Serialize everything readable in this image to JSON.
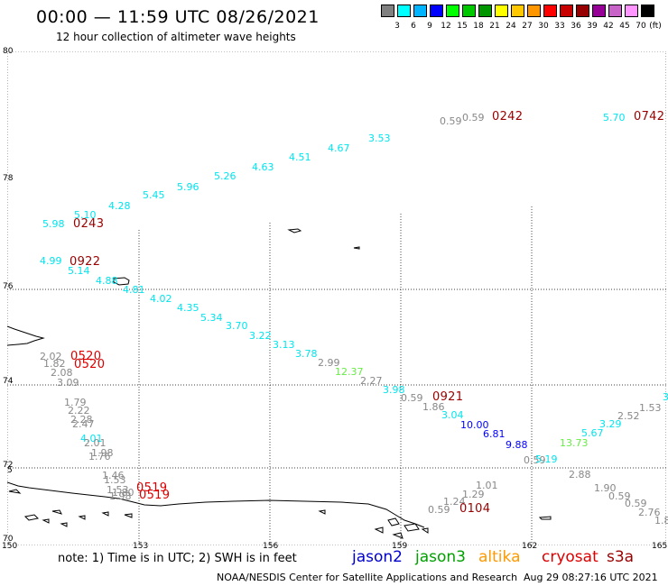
{
  "title": "00:00 — 11:59 UTC 08/26/2021",
  "subtitle": "12 hour collection of altimeter wave heights",
  "scale": {
    "unit": "(ft)",
    "swatches": [
      {
        "label": "",
        "color": "#808080"
      },
      {
        "label": "3",
        "color": "#00ffff"
      },
      {
        "label": "6",
        "color": "#00b4ff"
      },
      {
        "label": "9",
        "color": "#0000ff"
      },
      {
        "label": "12",
        "color": "#00ff00"
      },
      {
        "label": "15",
        "color": "#00c800"
      },
      {
        "label": "18",
        "color": "#009600"
      },
      {
        "label": "21",
        "color": "#ffff00"
      },
      {
        "label": "24",
        "color": "#ffc800"
      },
      {
        "label": "27",
        "color": "#ff9600"
      },
      {
        "label": "30",
        "color": "#ff0000"
      },
      {
        "label": "33",
        "color": "#c80000"
      },
      {
        "label": "36",
        "color": "#960000"
      },
      {
        "label": "39",
        "color": "#960096"
      },
      {
        "label": "42",
        "color": "#c864c8"
      },
      {
        "label": "45",
        "color": "#ff96ff"
      },
      {
        "label": "70",
        "color": "#000000"
      }
    ]
  },
  "axes": {
    "lat_labels": [
      "80",
      "78",
      "76",
      "74",
      "72",
      "70",
      "5"
    ],
    "lon_labels": [
      "150",
      "153",
      "156",
      "159",
      "162",
      "165"
    ]
  },
  "colors": {
    "jason2": "#0000cc",
    "jason3": "#00a000",
    "altika": "#ff9900",
    "cryosat": "#dd0000",
    "s3a": "#990000",
    "cyan": "#00e5ee",
    "gray": "#888888",
    "green": "#66ee44",
    "blue": "#0000ff"
  },
  "wave_heights": [
    {
      "text": "0.59",
      "color": "gray"
    },
    {
      "text": "0.59",
      "color": "gray"
    },
    {
      "text": "3.53",
      "color": "cyan"
    },
    {
      "text": "4.67",
      "color": "cyan"
    },
    {
      "text": "4.51",
      "color": "cyan"
    },
    {
      "text": "4.63",
      "color": "cyan"
    },
    {
      "text": "5.26",
      "color": "cyan"
    },
    {
      "text": "5.96",
      "color": "cyan"
    },
    {
      "text": "5.45",
      "color": "cyan"
    },
    {
      "text": "4.28",
      "color": "cyan"
    },
    {
      "text": "5.10",
      "color": "cyan"
    },
    {
      "text": "5.98",
      "color": "cyan"
    },
    {
      "text": "5.70",
      "color": "cyan"
    },
    {
      "text": "4.99",
      "color": "cyan"
    },
    {
      "text": "5.14",
      "color": "cyan"
    },
    {
      "text": "4.88",
      "color": "cyan"
    },
    {
      "text": "4.81",
      "color": "cyan"
    },
    {
      "text": "4.02",
      "color": "cyan"
    },
    {
      "text": "4.35",
      "color": "cyan"
    },
    {
      "text": "5.34",
      "color": "cyan"
    },
    {
      "text": "3.70",
      "color": "cyan"
    },
    {
      "text": "3.22",
      "color": "cyan"
    },
    {
      "text": "3.13",
      "color": "cyan"
    },
    {
      "text": "3.78",
      "color": "cyan"
    },
    {
      "text": "2.99",
      "color": "gray"
    },
    {
      "text": "12.37",
      "color": "green"
    },
    {
      "text": "2.27",
      "color": "gray"
    },
    {
      "text": "3.98",
      "color": "cyan"
    },
    {
      "text": "0.59",
      "color": "gray"
    },
    {
      "text": "1.86",
      "color": "gray"
    },
    {
      "text": "3.04",
      "color": "cyan"
    },
    {
      "text": "10.00",
      "color": "blue"
    },
    {
      "text": "6.81",
      "color": "blue"
    },
    {
      "text": "9.88",
      "color": "blue"
    },
    {
      "text": "0.59",
      "color": "gray"
    },
    {
      "text": "5.19",
      "color": "cyan"
    },
    {
      "text": "13.73",
      "color": "green"
    },
    {
      "text": "5.67",
      "color": "cyan"
    },
    {
      "text": "3.29",
      "color": "cyan"
    },
    {
      "text": "2.52",
      "color": "gray"
    },
    {
      "text": "1.53",
      "color": "gray"
    },
    {
      "text": "3",
      "color": "cyan"
    },
    {
      "text": "2.02",
      "color": "gray"
    },
    {
      "text": "1.82",
      "color": "gray"
    },
    {
      "text": "2.08",
      "color": "gray"
    },
    {
      "text": "3.09",
      "color": "gray"
    },
    {
      "text": "1.79",
      "color": "gray"
    },
    {
      "text": "2.22",
      "color": "gray"
    },
    {
      "text": "2.28",
      "color": "gray"
    },
    {
      "text": "2.47",
      "color": "gray"
    },
    {
      "text": "4.01",
      "color": "cyan"
    },
    {
      "text": "2.01",
      "color": "gray"
    },
    {
      "text": "1.98",
      "color": "gray"
    },
    {
      "text": "1.76",
      "color": "gray"
    },
    {
      "text": "1.46",
      "color": "gray"
    },
    {
      "text": "1.53",
      "color": "gray"
    },
    {
      "text": "1.53",
      "color": "gray"
    },
    {
      "text": "1.80",
      "color": "gray"
    },
    {
      "text": "1.98",
      "color": "gray"
    },
    {
      "text": "1.01",
      "color": "gray"
    },
    {
      "text": "1.29",
      "color": "gray"
    },
    {
      "text": "1.24",
      "color": "gray"
    },
    {
      "text": "0.59",
      "color": "gray"
    },
    {
      "text": "2.88",
      "color": "gray"
    },
    {
      "text": "1.90",
      "color": "gray"
    },
    {
      "text": "0.59",
      "color": "gray"
    },
    {
      "text": "0.59",
      "color": "gray"
    },
    {
      "text": "2.76",
      "color": "gray"
    },
    {
      "text": "1.8",
      "color": "gray"
    }
  ],
  "pass_times": [
    {
      "text": "0242",
      "color": "s3a"
    },
    {
      "text": "0742",
      "color": "s3a"
    },
    {
      "text": "0243",
      "color": "s3a"
    },
    {
      "text": "0922",
      "color": "s3a"
    },
    {
      "text": "0520",
      "color": "cryosat"
    },
    {
      "text": "0520",
      "color": "cryosat"
    },
    {
      "text": "0921",
      "color": "s3a"
    },
    {
      "text": "0519",
      "color": "cryosat"
    },
    {
      "text": "0519",
      "color": "cryosat"
    },
    {
      "text": "0104",
      "color": "s3a"
    }
  ],
  "footer": {
    "note": "note:  1) Time is in UTC;  2) SWH is in feet",
    "satellites": [
      {
        "name": "jason2",
        "color": "jason2"
      },
      {
        "name": "jason3",
        "color": "jason3"
      },
      {
        "name": "altika",
        "color": "altika"
      },
      {
        "name": "cryosat",
        "color": "cryosat"
      },
      {
        "name": "s3a",
        "color": "s3a"
      }
    ],
    "credit": "NOAA/NESDIS Center for Satellite Applications and Research",
    "timestamp": "Aug 29 08:27:16 UTC 2021"
  }
}
